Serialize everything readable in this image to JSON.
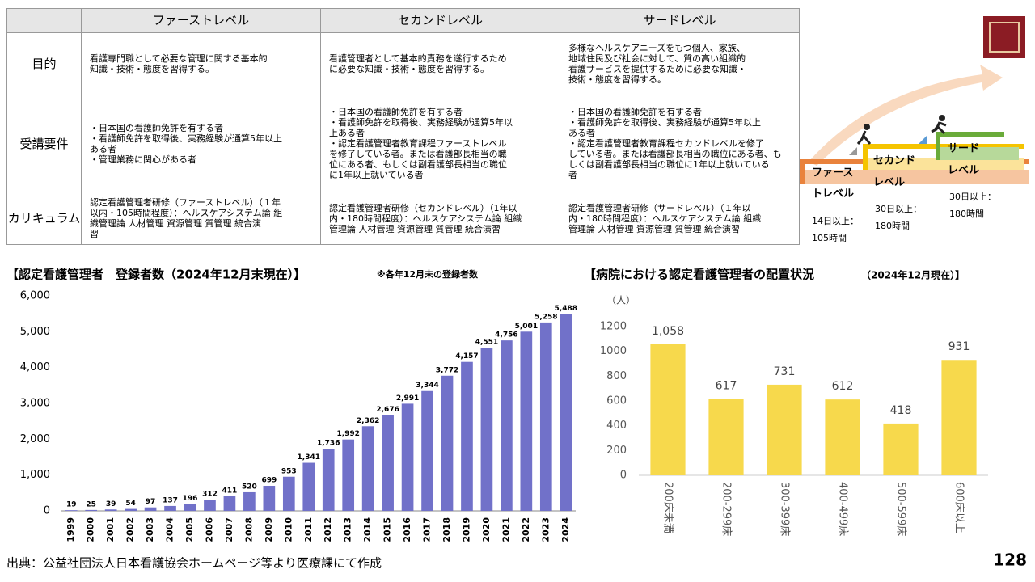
{
  "table": {
    "header": [
      "ファーストレベル",
      "セカンドレベル",
      "サードレベル"
    ],
    "rows": [
      {
        "label": "目的",
        "cells": [
          [
            "看護専門職として必要な管理に関する基本的",
            "知識・技術・態度を習得する。"
          ],
          [
            "看護管理者として基本的責務を遂行するため",
            "に必要な知識・技術・態度を習得する。"
          ],
          [
            "多様なヘルスケアニーズをもつ個人、家族、",
            "地域住民及び社会に対して、質の高い組織的",
            "看護サービスを提供するために必要な知識・",
            "技術・態度を習得する。"
          ]
        ]
      },
      {
        "label": "受講要件",
        "cells": [
          [
            "・日本国の看護師免許を有する者",
            "・看護師免許を取得後、実務経験が通算5年以上",
            "ある者",
            "・管理業務に関心がある者"
          ],
          [
            "・日本国の看護師免許を有する者",
            "・看護師免許を取得後、実務経験が通算5年以",
            "上ある者",
            "・認定看護管理者教育課程ファーストレベル",
            "を修了している者。または看護部長相当の職",
            "位にある者、もしくは副看護部長相当の職位",
            "に1年以上就いている者"
          ],
          [
            "・日本国の看護師免許を有する者",
            "・看護師免許を取得後、実務経験が通算5年以上",
            "ある者",
            "・認定看護管理者教育課程セカンドレベルを修了",
            "している者。または看護部長相当の職位にある者、も",
            "しくは副看護部長相当の職位に1年以上就いている",
            "者"
          ]
        ]
      },
      {
        "label": "カリキュラム",
        "cells": [
          [
            "認定看護管理者研修（ファーストレベル）（１年",
            "以内・105時間程度）：ヘルスケアシステム論 組",
            "織管理論 人材管理 資源管理 質管理 統合演",
            "習"
          ],
          [
            "認定看護管理者研修（セカンドレベル）（1年以",
            "内・180時間程度）：ヘルスケアシステム論 組織",
            "管理論 人材管理 資源管理 質管理 統合演習"
          ],
          [
            "認定看護管理者研修（サードレベル）（１年以",
            "内・180時間程度）：ヘルスケアシステム論 組織",
            "管理論 人材管理 資源管理 質管理 統合演習"
          ]
        ]
      }
    ]
  },
  "diagram": {
    "levels": [
      {
        "name": [
          "ファース",
          "トレベル"
        ],
        "hours": [
          "14日以上：",
          "105時間"
        ]
      },
      {
        "name": [
          "セカンド",
          "レベル"
        ],
        "hours": [
          "30日以上：",
          "180時間"
        ]
      },
      {
        "name": [
          "サード",
          "レベル"
        ],
        "hours": [
          "30日以上：",
          "180時間"
        ]
      }
    ]
  },
  "chart_data": [
    {
      "type": "bar",
      "title": "【認定看護管理者　登録者数（2024年12月末現在）】",
      "subtitle": "※各年12月末の登録者数",
      "categories": [
        "1999",
        "2000",
        "2001",
        "2002",
        "2003",
        "2004",
        "2005",
        "2006",
        "2007",
        "2008",
        "2009",
        "2010",
        "2011",
        "2012",
        "2013",
        "2014",
        "2015",
        "2016",
        "2017",
        "2018",
        "2019",
        "2020",
        "2021",
        "2022",
        "2023",
        "2024"
      ],
      "values": [
        19,
        25,
        39,
        54,
        97,
        137,
        196,
        312,
        411,
        520,
        699,
        953,
        1341,
        1736,
        1992,
        2362,
        2676,
        2991,
        3344,
        3772,
        4157,
        4551,
        4756,
        5001,
        5258,
        5488
      ],
      "value_labels": [
        "19",
        "25",
        "39",
        "54",
        "97",
        "137",
        "196",
        "312",
        "411",
        "520",
        "699",
        "953",
        "1,341",
        "1,736",
        "1,992",
        "2,362",
        "2,676",
        "2,991",
        "3,344",
        "3,772",
        "4,157",
        "4,551",
        "4,756",
        "5,001",
        "5,258",
        "5,488"
      ],
      "color": "#7171c9",
      "ylim": [
        0,
        6000
      ],
      "yticks": [
        0,
        {
          "value": 1000,
          "label": "1,000"
        },
        {
          "value": 2000,
          "label": "2,000"
        },
        {
          "value": 3000,
          "label": "3,000"
        },
        {
          "value": 4000,
          "label": "4,000"
        },
        {
          "value": 5000,
          "label": "5,000"
        },
        {
          "value": 6000,
          "label": "6,000"
        }
      ],
      "grid": false
    },
    {
      "type": "bar",
      "title": "【病院における認定看護管理者の配置状況",
      "subtitle": "（2024年12月現在）】",
      "y_label": "（人）",
      "categories": [
        "200床未満",
        "200-299床",
        "300-399床",
        "400-499床",
        "500-599床",
        "600床以上"
      ],
      "values": [
        1058,
        617,
        731,
        612,
        418,
        931
      ],
      "value_labels": [
        "1,058",
        "617",
        "731",
        "612",
        "418",
        "931"
      ],
      "color": "#f7d94c",
      "ylim": [
        0,
        1200
      ],
      "yticks": [
        0,
        200,
        400,
        600,
        800,
        1000,
        1200
      ],
      "grid": false
    }
  ],
  "footer": {
    "source": "出典：公益社団法人日本看護協会ホームページ等より医療課にて作成",
    "page": "128"
  }
}
